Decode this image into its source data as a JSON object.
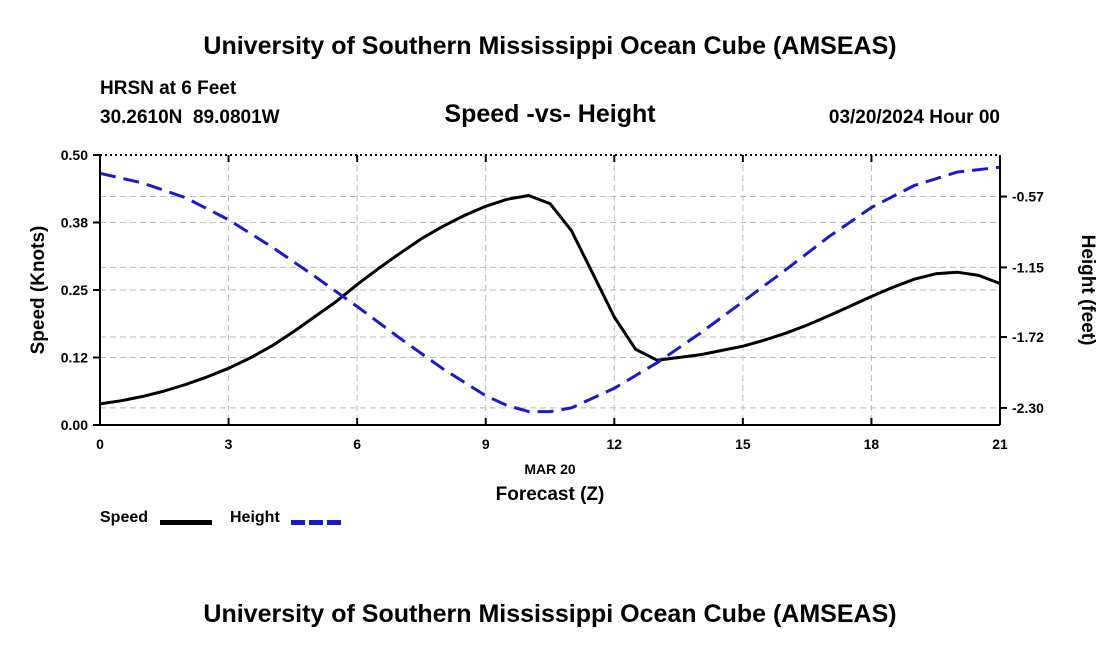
{
  "header": {
    "title": "University of Southern Mississippi Ocean Cube (AMSEAS)",
    "station": "HRSN at 6 Feet",
    "coords": "30.2610N  89.0801W",
    "subtitle": "Speed -vs- Height",
    "datetime": "03/20/2024 Hour 00"
  },
  "footer": {
    "title": "University of Southern Mississippi Ocean Cube (AMSEAS)"
  },
  "legend": {
    "speed_label": "Speed",
    "height_label": "Height"
  },
  "colors": {
    "speed": "#000000",
    "height": "#1a1acc",
    "grid": "#bbbbbb"
  },
  "chart_data": {
    "type": "line",
    "title": "Speed -vs- Height",
    "xlabel": "Forecast (Z)",
    "xdate": "MAR 20",
    "ylabel": "Speed (Knots)",
    "y2label": "Height (feet)",
    "xlim": [
      0,
      21
    ],
    "ylim": [
      0,
      0.5
    ],
    "y2lim": [
      -2.44,
      -0.23
    ],
    "x_ticks": [
      "0",
      "3",
      "6",
      "9",
      "12",
      "15",
      "18",
      "21"
    ],
    "x_tick_values": [
      0,
      3,
      6,
      9,
      12,
      15,
      18,
      21
    ],
    "y_ticks": [
      "0.00",
      "0.12",
      "0.25",
      "0.38",
      "0.50"
    ],
    "y_tick_values": [
      0.0,
      0.125,
      0.25,
      0.375,
      0.5
    ],
    "y2_ticks": [
      "-0.57",
      "-1.15",
      "-1.72",
      "-2.30"
    ],
    "y2_tick_values": [
      -0.57,
      -1.15,
      -1.72,
      -2.3
    ],
    "series": [
      {
        "name": "Speed",
        "axis": "left",
        "style": "solid",
        "x": [
          0,
          0.5,
          1,
          1.5,
          2,
          2.5,
          3,
          3.5,
          4,
          4.5,
          5,
          5.5,
          6,
          6.5,
          7,
          7.5,
          8,
          8.5,
          9,
          9.5,
          10,
          10.5,
          11,
          11.5,
          12,
          12.5,
          13,
          13.5,
          14,
          14.5,
          15,
          15.5,
          16,
          16.5,
          17,
          17.5,
          18,
          18.5,
          19,
          19.5,
          20,
          20.5,
          21
        ],
        "values": [
          0.039,
          0.045,
          0.053,
          0.063,
          0.075,
          0.089,
          0.105,
          0.124,
          0.146,
          0.172,
          0.2,
          0.228,
          0.26,
          0.29,
          0.318,
          0.345,
          0.368,
          0.388,
          0.405,
          0.418,
          0.425,
          0.41,
          0.36,
          0.28,
          0.2,
          0.14,
          0.12,
          0.125,
          0.13,
          0.138,
          0.146,
          0.157,
          0.17,
          0.185,
          0.202,
          0.22,
          0.238,
          0.255,
          0.27,
          0.28,
          0.283,
          0.277,
          0.262
        ]
      },
      {
        "name": "Height",
        "axis": "right",
        "style": "dashed",
        "x": [
          0,
          1,
          2,
          3,
          4,
          5,
          6,
          7,
          8,
          9,
          9.5,
          10,
          10.5,
          11,
          12,
          13,
          14,
          15,
          16,
          17,
          18,
          19,
          20,
          21
        ],
        "values": [
          -0.38,
          -0.46,
          -0.58,
          -0.76,
          -0.98,
          -1.22,
          -1.47,
          -1.73,
          -1.98,
          -2.2,
          -2.28,
          -2.33,
          -2.33,
          -2.3,
          -2.14,
          -1.93,
          -1.69,
          -1.43,
          -1.17,
          -0.9,
          -0.66,
          -0.48,
          -0.37,
          -0.33
        ]
      }
    ]
  }
}
